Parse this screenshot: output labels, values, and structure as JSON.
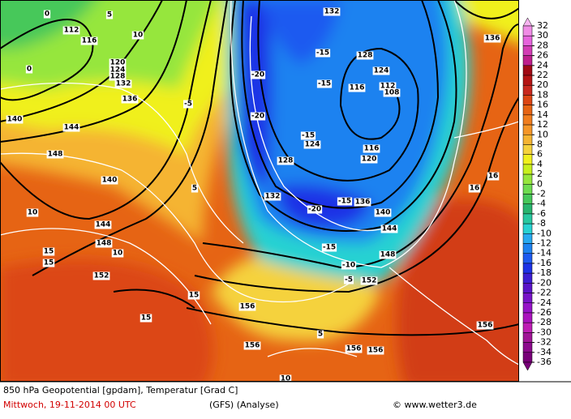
{
  "map": {
    "contour_labels": [
      "112",
      "116",
      "120",
      "124",
      "128",
      "132",
      "136",
      "140",
      "144",
      "148",
      "140",
      "144",
      "148",
      "152",
      "156",
      "156",
      "156",
      "156",
      "156",
      "152",
      "148",
      "144",
      "140",
      "136",
      "132",
      "128",
      "124",
      "120",
      "116",
      "112",
      "108",
      "116",
      "124",
      "128",
      "136",
      "132",
      "-15",
      "-20",
      "-20",
      "-15",
      "-15",
      "-20",
      "-15",
      "-15",
      "-10",
      "-5",
      "5",
      "10",
      "15",
      "15",
      "10",
      "10",
      "15",
      "15",
      "5",
      "-5",
      "0",
      "0",
      "5",
      "16",
      "16",
      "10"
    ]
  },
  "colorbar": {
    "levels": [
      32,
      30,
      28,
      26,
      24,
      22,
      20,
      18,
      16,
      14,
      12,
      10,
      8,
      6,
      4,
      2,
      0,
      -2,
      -4,
      -6,
      -8,
      -10,
      -12,
      -14,
      -16,
      -18,
      -20,
      -22,
      -24,
      -26,
      -28,
      -30,
      -32,
      -34,
      -36
    ],
    "colors": [
      "#f8b4f0",
      "#f08ce6",
      "#e664dc",
      "#d23cb4",
      "#be1e8c",
      "#a00a14",
      "#b41414",
      "#c8281e",
      "#dc4614",
      "#e66414",
      "#f07d1e",
      "#f59628",
      "#f5b432",
      "#f5d23c",
      "#f0f01e",
      "#c8f01e",
      "#96e63c",
      "#6edc50",
      "#46c85a",
      "#28b46e",
      "#28c8a0",
      "#28d2d2",
      "#28aaf0",
      "#1e82f0",
      "#1e5af0",
      "#1e32e6",
      "#3c1ed2",
      "#5a14c8",
      "#7814c8",
      "#9614c8",
      "#aa14be",
      "#be1eb4",
      "#a01496",
      "#8c0a8c",
      "#780078"
    ]
  },
  "footer": {
    "title": "850 hPa Geopotential [gpdam], Temperatur [Grad C]",
    "date": "Mittwoch, 19-11-2014  00 UTC",
    "model": "(GFS)  (Analyse)",
    "source": "© www.wetter3.de"
  }
}
